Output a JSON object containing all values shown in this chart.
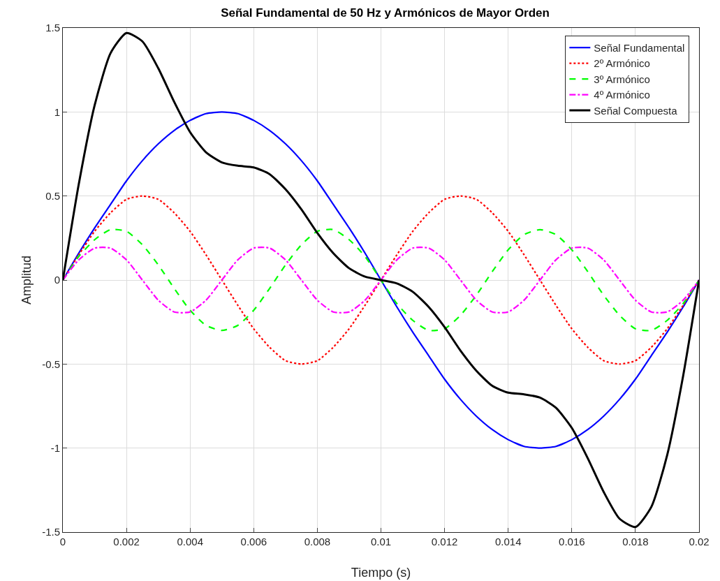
{
  "chart_data": {
    "type": "line",
    "title": "Señal Fundamental de 50 Hz y Armónicos de Mayor Orden",
    "xlabel": "Tiempo (s)",
    "ylabel": "Amplitud",
    "x": [
      0,
      0.0005,
      0.001,
      0.0015,
      0.002,
      0.0025,
      0.003,
      0.0035,
      0.004,
      0.0045,
      0.005,
      0.0055,
      0.006,
      0.0065,
      0.007,
      0.0075,
      0.008,
      0.0085,
      0.009,
      0.0095,
      0.01,
      0.0105,
      0.011,
      0.0115,
      0.012,
      0.0125,
      0.013,
      0.0135,
      0.014,
      0.0145,
      0.015,
      0.0155,
      0.016,
      0.0165,
      0.017,
      0.0175,
      0.018,
      0.0185,
      0.019,
      0.0195,
      0.02
    ],
    "series": [
      {
        "name": "Señal Fundamental",
        "color": "#0000ff",
        "line_style": "solid",
        "values": [
          0,
          0.16,
          0.31,
          0.45,
          0.59,
          0.71,
          0.81,
          0.89,
          0.95,
          0.99,
          1,
          0.99,
          0.95,
          0.89,
          0.81,
          0.71,
          0.59,
          0.45,
          0.31,
          0.16,
          0,
          -0.16,
          -0.31,
          -0.45,
          -0.59,
          -0.71,
          -0.81,
          -0.89,
          -0.95,
          -0.99,
          -1,
          -0.99,
          -0.95,
          -0.89,
          -0.81,
          -0.71,
          -0.59,
          -0.45,
          -0.31,
          -0.16,
          0
        ]
      },
      {
        "name": "2º Armónico",
        "color": "#ff0000",
        "line_style": "dotted",
        "values": [
          0,
          0.15,
          0.29,
          0.4,
          0.48,
          0.5,
          0.48,
          0.4,
          0.29,
          0.15,
          0,
          -0.15,
          -0.29,
          -0.4,
          -0.48,
          -0.5,
          -0.48,
          -0.4,
          -0.29,
          -0.15,
          0,
          0.15,
          0.29,
          0.4,
          0.48,
          0.5,
          0.48,
          0.4,
          0.29,
          0.15,
          0,
          -0.15,
          -0.29,
          -0.4,
          -0.48,
          -0.5,
          -0.48,
          -0.4,
          -0.29,
          -0.15,
          0
        ]
      },
      {
        "name": "3º Armónico",
        "color": "#00ff00",
        "line_style": "dashed",
        "values": [
          0,
          0.14,
          0.24,
          0.3,
          0.29,
          0.21,
          0.09,
          -0.05,
          -0.18,
          -0.27,
          -0.3,
          -0.27,
          -0.18,
          -0.05,
          0.09,
          0.21,
          0.29,
          0.3,
          0.24,
          0.14,
          0,
          -0.14,
          -0.24,
          -0.3,
          -0.29,
          -0.21,
          -0.09,
          0.05,
          0.18,
          0.27,
          0.3,
          0.27,
          0.18,
          0.05,
          -0.09,
          -0.21,
          -0.29,
          -0.3,
          -0.24,
          -0.14,
          0
        ]
      },
      {
        "name": "4º Armónico",
        "color": "#ff00ff",
        "line_style": "dashdot",
        "values": [
          0,
          0.12,
          0.19,
          0.19,
          0.12,
          0,
          -0.12,
          -0.19,
          -0.19,
          -0.12,
          0,
          0.12,
          0.19,
          0.19,
          0.12,
          0,
          -0.12,
          -0.19,
          -0.19,
          -0.12,
          0,
          0.12,
          0.19,
          0.19,
          0.12,
          0,
          -0.12,
          -0.19,
          -0.19,
          -0.12,
          0,
          0.12,
          0.19,
          0.19,
          0.12,
          0,
          -0.12,
          -0.19,
          -0.19,
          -0.12,
          0
        ]
      },
      {
        "name": "Señal Compuesta",
        "color": "#000000",
        "line_style": "solid",
        "values": [
          0,
          0.57,
          1.04,
          1.35,
          1.47,
          1.42,
          1.26,
          1.06,
          0.88,
          0.76,
          0.7,
          0.68,
          0.67,
          0.63,
          0.54,
          0.42,
          0.28,
          0.16,
          0.07,
          0.02,
          0,
          -0.02,
          -0.07,
          -0.16,
          -0.28,
          -0.42,
          -0.54,
          -0.63,
          -0.67,
          -0.68,
          -0.7,
          -0.76,
          -0.88,
          -1.06,
          -1.26,
          -1.42,
          -1.47,
          -1.35,
          -1.04,
          -0.57,
          0
        ]
      }
    ],
    "xlim": [
      0,
      0.02
    ],
    "xticks": [
      0,
      0.002,
      0.004,
      0.006,
      0.008,
      0.01,
      0.012,
      0.014,
      0.016,
      0.018,
      0.02
    ],
    "ylim": [
      -1.5,
      1.5
    ],
    "yticks": [
      -1.5,
      -1,
      -0.5,
      0,
      0.5,
      1,
      1.5
    ],
    "grid": true,
    "legend": "top right",
    "marker": "none"
  }
}
